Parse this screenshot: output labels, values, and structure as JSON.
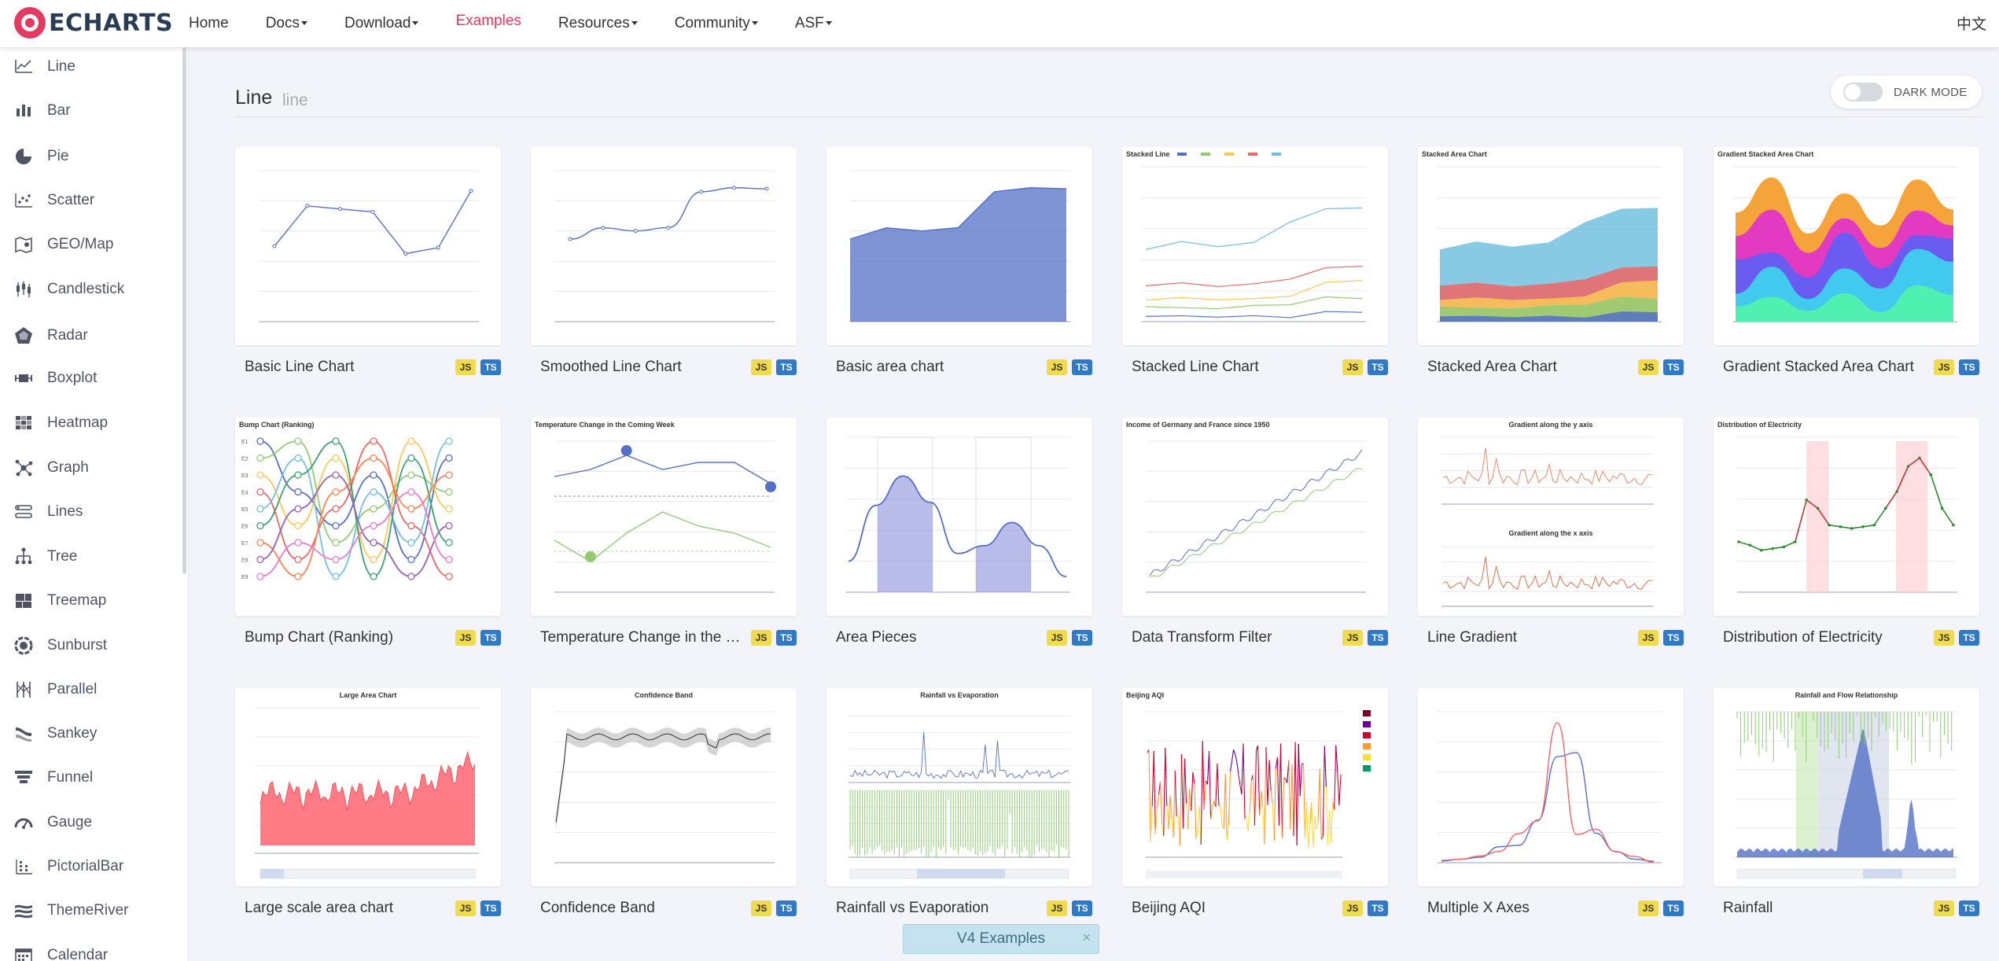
{
  "brand": {
    "name": "ECHARTS"
  },
  "nav": {
    "items": [
      {
        "label": "Home",
        "caret": false
      },
      {
        "label": "Docs",
        "caret": true
      },
      {
        "label": "Download",
        "caret": true
      },
      {
        "label": "Examples",
        "caret": false,
        "active": true
      },
      {
        "label": "Resources",
        "caret": true
      },
      {
        "label": "Community",
        "caret": true
      },
      {
        "label": "ASF",
        "caret": true
      }
    ],
    "lang": "中文"
  },
  "sidebar": {
    "items": [
      {
        "label": "Line",
        "icon": "line-chart-icon"
      },
      {
        "label": "Bar",
        "icon": "bar-chart-icon"
      },
      {
        "label": "Pie",
        "icon": "pie-chart-icon"
      },
      {
        "label": "Scatter",
        "icon": "scatter-chart-icon"
      },
      {
        "label": "GEO/Map",
        "icon": "map-icon"
      },
      {
        "label": "Candlestick",
        "icon": "candlestick-icon"
      },
      {
        "label": "Radar",
        "icon": "radar-icon"
      },
      {
        "label": "Boxplot",
        "icon": "boxplot-icon"
      },
      {
        "label": "Heatmap",
        "icon": "heatmap-icon"
      },
      {
        "label": "Graph",
        "icon": "graph-icon"
      },
      {
        "label": "Lines",
        "icon": "lines-icon"
      },
      {
        "label": "Tree",
        "icon": "tree-icon"
      },
      {
        "label": "Treemap",
        "icon": "treemap-icon"
      },
      {
        "label": "Sunburst",
        "icon": "sunburst-icon"
      },
      {
        "label": "Parallel",
        "icon": "parallel-icon"
      },
      {
        "label": "Sankey",
        "icon": "sankey-icon"
      },
      {
        "label": "Funnel",
        "icon": "funnel-icon"
      },
      {
        "label": "Gauge",
        "icon": "gauge-icon"
      },
      {
        "label": "PictorialBar",
        "icon": "pictorial-bar-icon"
      },
      {
        "label": "ThemeRiver",
        "icon": "theme-river-icon"
      },
      {
        "label": "Calendar",
        "icon": "calendar-icon"
      }
    ]
  },
  "section": {
    "title": "Line",
    "subtitle": "line",
    "dark_mode_label": "DARK MODE"
  },
  "badges": {
    "js": "JS",
    "ts": "TS"
  },
  "cards": [
    {
      "title": "Basic Line Chart"
    },
    {
      "title": "Smoothed Line Chart"
    },
    {
      "title": "Basic area chart"
    },
    {
      "title": "Stacked Line Chart"
    },
    {
      "title": "Stacked Area Chart"
    },
    {
      "title": "Gradient Stacked Area Chart"
    },
    {
      "title": "Bump Chart (Ranking)"
    },
    {
      "title": "Temperature Change in the Coming Week"
    },
    {
      "title": "Area Pieces"
    },
    {
      "title": "Data Transform Filter"
    },
    {
      "title": "Line Gradient"
    },
    {
      "title": "Distribution of Electricity"
    },
    {
      "title": "Large scale area chart"
    },
    {
      "title": "Confidence Band"
    },
    {
      "title": "Rainfall vs Evaporation"
    },
    {
      "title": "Beijing AQI"
    },
    {
      "title": "Multiple X Axes"
    },
    {
      "title": "Rainfall"
    }
  ],
  "thumb_titles": {
    "stacked_line": "Stacked Line",
    "stacked_area": "Stacked Area Chart",
    "gradient_stacked": "Gradient Stacked Area Chart",
    "bump": "Bump Chart (Ranking)",
    "temperature": "Temperature Change in the Coming Week",
    "data_transform": "Income of Germany and France since 1950",
    "gradient_y": "Gradient along the y axis",
    "gradient_x": "Gradient along the x axis",
    "electricity": "Distribution of Electricity",
    "large_area": "Large Area Chart",
    "confidence": "Confidence Band",
    "rain_evap": "Rainfall vs Evaporation",
    "aqi": "Beijing AQI",
    "rainfall": "Rainfall and Flow Relationship"
  },
  "v4_banner": {
    "label": "V4 Examples",
    "close": "×"
  },
  "colors": {
    "accent": "#e43961",
    "primary_series": "#5470c6",
    "js_badge": "#f0db4f",
    "ts_badge": "#3178c6"
  }
}
